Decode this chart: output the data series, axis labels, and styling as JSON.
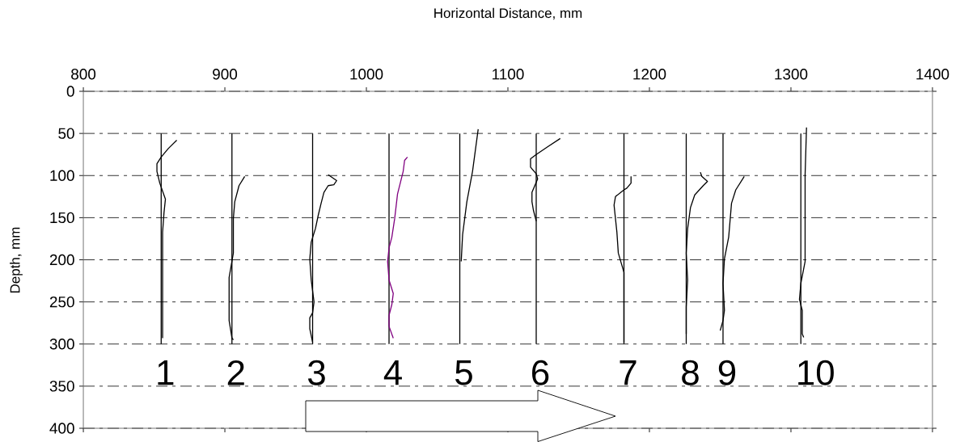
{
  "chart_data": {
    "type": "line",
    "xlabel": "Horizontal Distance, mm",
    "ylabel": "Depth, mm",
    "xlim": [
      800,
      1400
    ],
    "ylim": [
      400,
      0
    ],
    "xticks": [
      800,
      900,
      1000,
      1100,
      1200,
      1300,
      1400
    ],
    "yticks": [
      0,
      50,
      100,
      150,
      200,
      250,
      300,
      350,
      400
    ],
    "grid": "y",
    "marker": "none",
    "line_style": "solid",
    "series": [
      {
        "color": "#000000",
        "x": [
          855,
          855
        ],
        "values": [
          50,
          300
        ]
      },
      {
        "color": "#000000",
        "x": [
          866,
          860,
          855,
          852,
          852,
          854,
          858,
          857,
          856,
          856,
          856,
          856,
          856
        ],
        "values": [
          58,
          68,
          78,
          86,
          95,
          109,
          128,
          144,
          167,
          208,
          256,
          288,
          293
        ]
      },
      {
        "color": "#000000",
        "x": [
          905,
          905
        ],
        "values": [
          50,
          300
        ]
      },
      {
        "color": "#000000",
        "x": [
          914,
          910,
          907,
          906,
          906,
          903,
          903,
          905,
          906
        ],
        "values": [
          101,
          112,
          131,
          151,
          192,
          221,
          272,
          293,
          295
        ]
      },
      {
        "color": "#000000",
        "x": [
          962,
          962
        ],
        "values": [
          50,
          300
        ]
      },
      {
        "color": "#000000",
        "x": [
          973,
          979,
          977,
          973,
          970,
          968,
          966,
          964,
          961,
          960,
          961,
          963,
          962,
          960,
          960,
          962
        ],
        "values": [
          99,
          106,
          111,
          112,
          120,
          133,
          147,
          163,
          179,
          199,
          224,
          250,
          263,
          269,
          282,
          298
        ]
      },
      {
        "color": "#000000",
        "x": [
          1016,
          1016
        ],
        "values": [
          50,
          300
        ]
      },
      {
        "color": "#800080",
        "x": [
          1029,
          1027,
          1026,
          1022,
          1020,
          1018,
          1016,
          1015,
          1016,
          1019,
          1018,
          1016,
          1016,
          1019
        ],
        "values": [
          78,
          82,
          95,
          122,
          151,
          173,
          186,
          202,
          224,
          240,
          253,
          266,
          279,
          293
        ]
      },
      {
        "color": "#000000",
        "x": [
          1066,
          1066
        ],
        "values": [
          50,
          300
        ]
      },
      {
        "color": "#000000",
        "x": [
          1079,
          1075,
          1071,
          1068,
          1067
        ],
        "values": [
          45,
          95,
          131,
          170,
          202
        ]
      },
      {
        "color": "#000000",
        "x": [
          1120,
          1120
        ],
        "values": [
          50,
          300
        ]
      },
      {
        "color": "#000000",
        "x": [
          1137,
          1128,
          1120,
          1116,
          1116,
          1120,
          1121,
          1117,
          1117,
          1118,
          1120
        ],
        "values": [
          56,
          66,
          75,
          80,
          90,
          98,
          104,
          120,
          131,
          141,
          154
        ]
      },
      {
        "color": "#000000",
        "x": [
          1182,
          1182
        ],
        "values": [
          50,
          300
        ]
      },
      {
        "color": "#000000",
        "x": [
          1187,
          1187,
          1184,
          1182,
          1176,
          1175,
          1177,
          1178,
          1182,
          1182
        ],
        "values": [
          101,
          109,
          115,
          117,
          125,
          135,
          167,
          192,
          215,
          298
        ]
      },
      {
        "color": "#000000",
        "x": [
          1226,
          1226
        ],
        "values": [
          50,
          300
        ]
      },
      {
        "color": "#000000",
        "x": [
          1236,
          1237,
          1241,
          1238,
          1232,
          1229,
          1227,
          1226,
          1227,
          1226,
          1226
        ],
        "values": [
          96,
          101,
          107,
          112,
          123,
          138,
          163,
          192,
          224,
          256,
          288
        ]
      },
      {
        "color": "#000000",
        "x": [
          1252,
          1252
        ],
        "values": [
          50,
          300
        ]
      },
      {
        "color": "#000000",
        "x": [
          1267,
          1261,
          1258,
          1256,
          1253,
          1252,
          1253,
          1252,
          1250
        ],
        "values": [
          101,
          117,
          133,
          173,
          199,
          228,
          260,
          272,
          284
        ]
      },
      {
        "color": "#000000",
        "x": [
          1307,
          1307
        ],
        "values": [
          50,
          300
        ]
      },
      {
        "color": "#000000",
        "x": [
          1311,
          1310,
          1310,
          1307,
          1306,
          1308,
          1308,
          1309
        ],
        "values": [
          43,
          99,
          202,
          228,
          247,
          260,
          288,
          292
        ]
      }
    ],
    "annotations": [
      "1",
      "2",
      "3",
      "4",
      "5",
      "6",
      "7",
      "8",
      "9",
      "10"
    ]
  }
}
